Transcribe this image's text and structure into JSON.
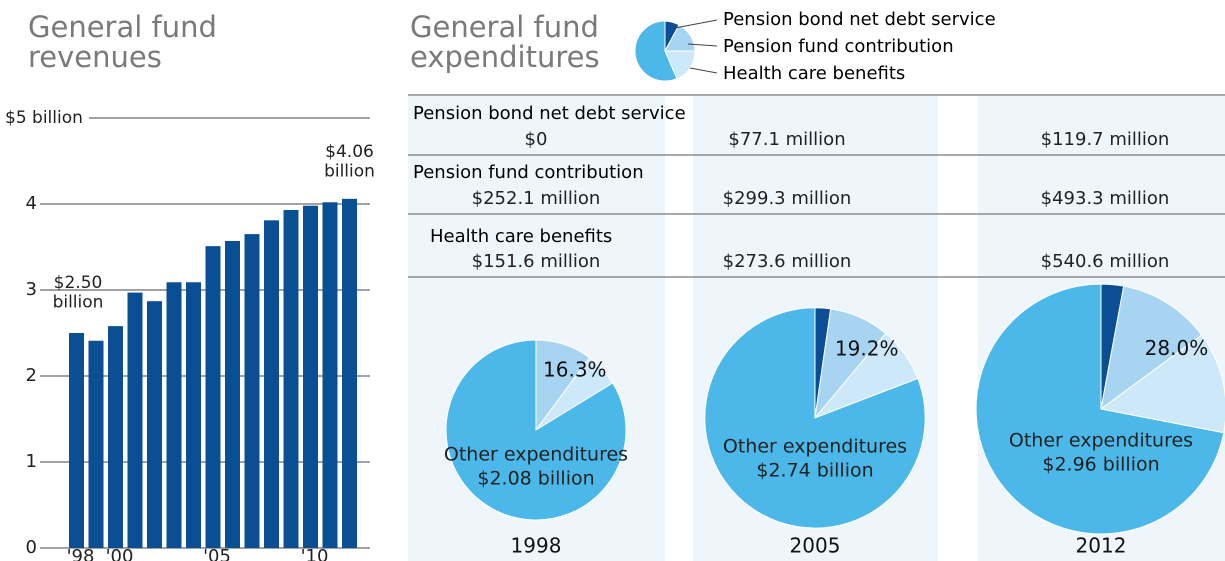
{
  "expenditures_title": "General fund expenditures",
  "chart_data": [
    {
      "type": "bar",
      "title": "General fund revenues",
      "categories": [
        "'98",
        null,
        "'00",
        null,
        null,
        null,
        null,
        "'05",
        null,
        null,
        null,
        null,
        "'10",
        null,
        null
      ],
      "values": [
        2.5,
        2.41,
        2.58,
        2.97,
        2.87,
        3.09,
        3.09,
        3.51,
        3.57,
        3.65,
        3.81,
        3.93,
        3.98,
        4.02,
        4.06
      ],
      "value_labels": [
        "$2.50 billion",
        null,
        null,
        null,
        null,
        null,
        null,
        null,
        null,
        null,
        null,
        null,
        null,
        null,
        "$4.06 billion"
      ],
      "color": "#0a4f94",
      "ylim": [
        0,
        5
      ],
      "yticks": [
        0,
        1,
        2,
        3,
        4,
        {
          "value": 5,
          "label": "$5 billion"
        }
      ],
      "grid": true
    },
    {
      "type": "pie",
      "title": "1998",
      "categories": [
        "Pension bond net debt service",
        "Pension fund contribution",
        "Health care benefits",
        "Other expenditures"
      ],
      "values": [
        0,
        252.1,
        151.6,
        2080
      ],
      "value_labels": [
        "$0",
        "$252.1 million",
        "$151.6 million",
        "$2.08 billion"
      ],
      "colors": [
        "#0b4e96",
        "#a6d4f1",
        "#cde9f9",
        "#4cb8ea"
      ],
      "annotation": "16.3%"
    },
    {
      "type": "pie",
      "title": "2005",
      "categories": [
        "Pension bond net debt service",
        "Pension fund contribution",
        "Health care benefits",
        "Other expenditures"
      ],
      "values": [
        77.1,
        299.3,
        273.6,
        2740
      ],
      "value_labels": [
        "$77.1 million",
        "$299.3 million",
        "$273.6 million",
        "$2.74 billion"
      ],
      "colors": [
        "#0b4e96",
        "#a6d4f1",
        "#cde9f9",
        "#4cb8ea"
      ],
      "annotation": "19.2%"
    },
    {
      "type": "pie",
      "title": "2012",
      "categories": [
        "Pension bond net debt service",
        "Pension fund contribution",
        "Health care benefits",
        "Other expenditures"
      ],
      "values": [
        119.7,
        493.3,
        540.6,
        2960
      ],
      "value_labels": [
        "$119.7 million",
        "$493.3 million",
        "$540.6 million",
        "$2.96 billion"
      ],
      "colors": [
        "#0b4e96",
        "#a6d4f1",
        "#cde9f9",
        "#4cb8ea"
      ],
      "annotation": "28.0%"
    }
  ]
}
